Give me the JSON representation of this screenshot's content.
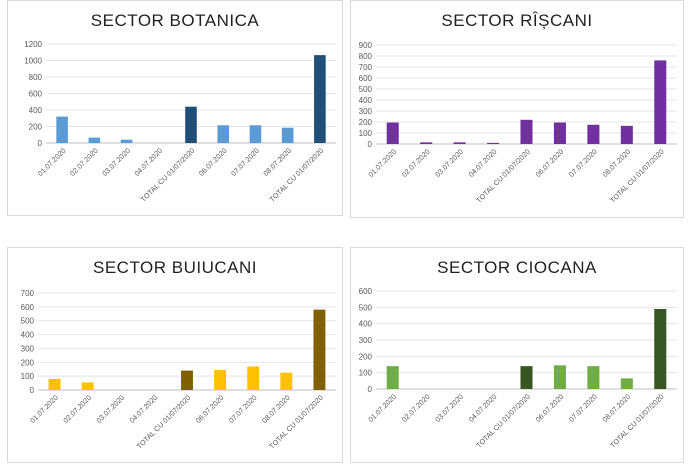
{
  "charts": [
    {
      "title": "SECTOR  BOTANICA",
      "type": "bar",
      "categories": [
        "01.07.2020",
        "02.07.2020",
        "03.07.2020",
        "04.07.2020",
        "TOTAL CU 01/07/2020",
        "06.07.2020",
        "07.07.2020",
        "08.07.2020",
        "TOTAL CU 01/07/2020"
      ],
      "values": [
        320,
        65,
        40,
        0,
        440,
        215,
        215,
        185,
        1065
      ],
      "ylim": [
        0,
        1200
      ],
      "yticks": [
        "0",
        "200",
        "400",
        "600",
        "800",
        "1000",
        "1200"
      ],
      "colors": [
        "#5b9bd5",
        "#5b9bd5",
        "#5b9bd5",
        "#5b9bd5",
        "#1f4e79",
        "#5b9bd5",
        "#5b9bd5",
        "#5b9bd5",
        "#1f4e79"
      ]
    },
    {
      "title": "SECTOR  RÎȘCANI",
      "type": "bar",
      "categories": [
        "01.07.2020",
        "02.07.2020",
        "03.07.2020",
        "04.07.2020",
        "TOTAL CU 01/07/2020",
        "06.07.2020",
        "07.07.2020",
        "08.07.2020",
        "TOTAL CU 01/07/2020"
      ],
      "values": [
        195,
        15,
        15,
        10,
        220,
        195,
        175,
        165,
        760
      ],
      "ylim": [
        0,
        900
      ],
      "yticks": [
        "0",
        "100",
        "200",
        "300",
        "400",
        "500",
        "600",
        "700",
        "800",
        "900"
      ],
      "colors": [
        "#7030a0",
        "#7030a0",
        "#7030a0",
        "#7030a0",
        "#7030a0",
        "#7030a0",
        "#7030a0",
        "#7030a0",
        "#7030a0"
      ]
    },
    {
      "title": "SECTOR  BUIUCANI",
      "type": "bar",
      "categories": [
        "01.07.2020",
        "02.07.2020",
        "03.07.2020",
        "04.07.2020",
        "TOTAL CU 01/07/2020",
        "06.07.2020",
        "07.07.2020",
        "08.07.2020",
        "TOTAL CU 01/07/2020"
      ],
      "values": [
        80,
        55,
        0,
        0,
        140,
        145,
        170,
        125,
        580
      ],
      "ylim": [
        0,
        700
      ],
      "yticks": [
        "0",
        "100",
        "200",
        "300",
        "400",
        "500",
        "600",
        "700"
      ],
      "colors": [
        "#ffc000",
        "#ffc000",
        "#ffc000",
        "#ffc000",
        "#806000",
        "#ffc000",
        "#ffc000",
        "#ffc000",
        "#806000"
      ]
    },
    {
      "title": "SECTOR  CIOCANA",
      "type": "bar",
      "categories": [
        "01.07.2020",
        "02.07.2020",
        "03.07.2020",
        "04.07.2020",
        "TOTAL CU 01/07/2020",
        "06.07.2020",
        "07.07.2020",
        "08.07.2020",
        "TOTAL CU 01/07/2020"
      ],
      "values": [
        140,
        0,
        0,
        0,
        140,
        145,
        140,
        65,
        490
      ],
      "ylim": [
        0,
        600
      ],
      "yticks": [
        "0",
        "100",
        "200",
        "300",
        "400",
        "500",
        "600"
      ],
      "colors": [
        "#70ad47",
        "#70ad47",
        "#70ad47",
        "#70ad47",
        "#375623",
        "#70ad47",
        "#70ad47",
        "#70ad47",
        "#375623"
      ]
    }
  ]
}
